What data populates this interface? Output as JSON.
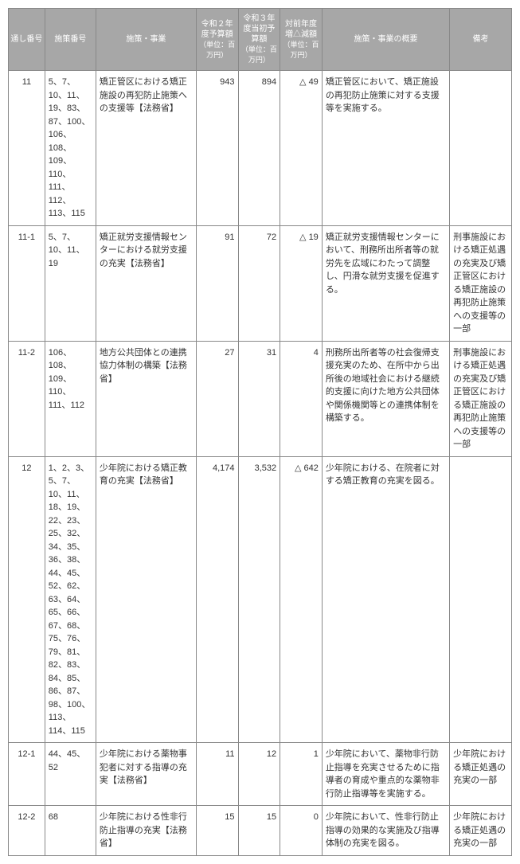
{
  "headers": {
    "serial": "通し番号",
    "policy": "施策番号",
    "name": "施策・事業",
    "r2": "令和２年度予算額",
    "r2_unit": "（単位：百万円）",
    "r3": "令和３年度当初予算額",
    "r3_unit": "（単位：百万円）",
    "diff": "対前年度増△減額",
    "diff_unit": "（単位：百万円）",
    "desc": "施策・事業の概要",
    "note": "備考"
  },
  "rows": [
    {
      "serial": "11",
      "policy": "5、7、10、11、19、83、87、100、106、108、109、110、111、112、113、115",
      "name": "矯正管区における矯正施設の再犯防止施策への支援等【法務省】",
      "r2": "943",
      "r3": "894",
      "diff": "△ 49",
      "desc": "矯正管区において、矯正施設の再犯防止施策に対する支援等を実施する。",
      "note": ""
    },
    {
      "serial": "11-1",
      "policy": "5、7、10、11、19",
      "name": "矯正就労支援情報センターにおける就労支援の充実【法務省】",
      "r2": "91",
      "r3": "72",
      "diff": "△ 19",
      "desc": "矯正就労支援情報センターにおいて、刑務所出所者等の就労先を広域にわたって調整し、円滑な就労支援を促進する。",
      "note": "刑事施設における矯正処遇の充実及び矯正管区における矯正施設の再犯防止施策への支援等の一部"
    },
    {
      "serial": "11-2",
      "policy": "106、108、109、110、111、112",
      "name": "地方公共団体との連携協力体制の構築【法務省】",
      "r2": "27",
      "r3": "31",
      "diff": "4",
      "desc": "刑務所出所者等の社会復帰支援充実のため、在所中から出所後の地域社会における継続的支援に向けた地方公共団体や関係機関等との連携体制を構築する。",
      "note": "刑事施設における矯正処遇の充実及び矯正管区における矯正施設の再犯防止施策への支援等の一部"
    },
    {
      "serial": "12",
      "policy": "1、2、3、5、7、10、11、18、19、22、23、25、32、34、35、36、38、44、45、52、62、63、64、65、66、67、68、75、76、79、81、82、83、84、85、86、87、98、100、113、114、115",
      "name": "少年院における矯正教育の充実【法務省】",
      "r2": "4,174",
      "r3": "3,532",
      "diff": "△ 642",
      "desc": "少年院における、在院者に対する矯正教育の充実を図る。",
      "note": ""
    },
    {
      "serial": "12-1",
      "policy": "44、45、52",
      "name": "少年院における薬物事犯者に対する指導の充実【法務省】",
      "r2": "11",
      "r3": "12",
      "diff": "1",
      "desc": "少年院において、薬物非行防止指導を充実させるために指導者の育成や重点的な薬物非行防止指導等を実施する。",
      "note": "少年院における矯正処遇の充実の一部"
    },
    {
      "serial": "12-2",
      "policy": "68",
      "name": "少年院における性非行防止指導の充実【法務省】",
      "r2": "15",
      "r3": "15",
      "diff": "0",
      "desc": "少年院において、性非行防止指導の効果的な実施及び指導体制の充実を図る。",
      "note": "少年院における矯正処遇の充実の一部"
    }
  ]
}
